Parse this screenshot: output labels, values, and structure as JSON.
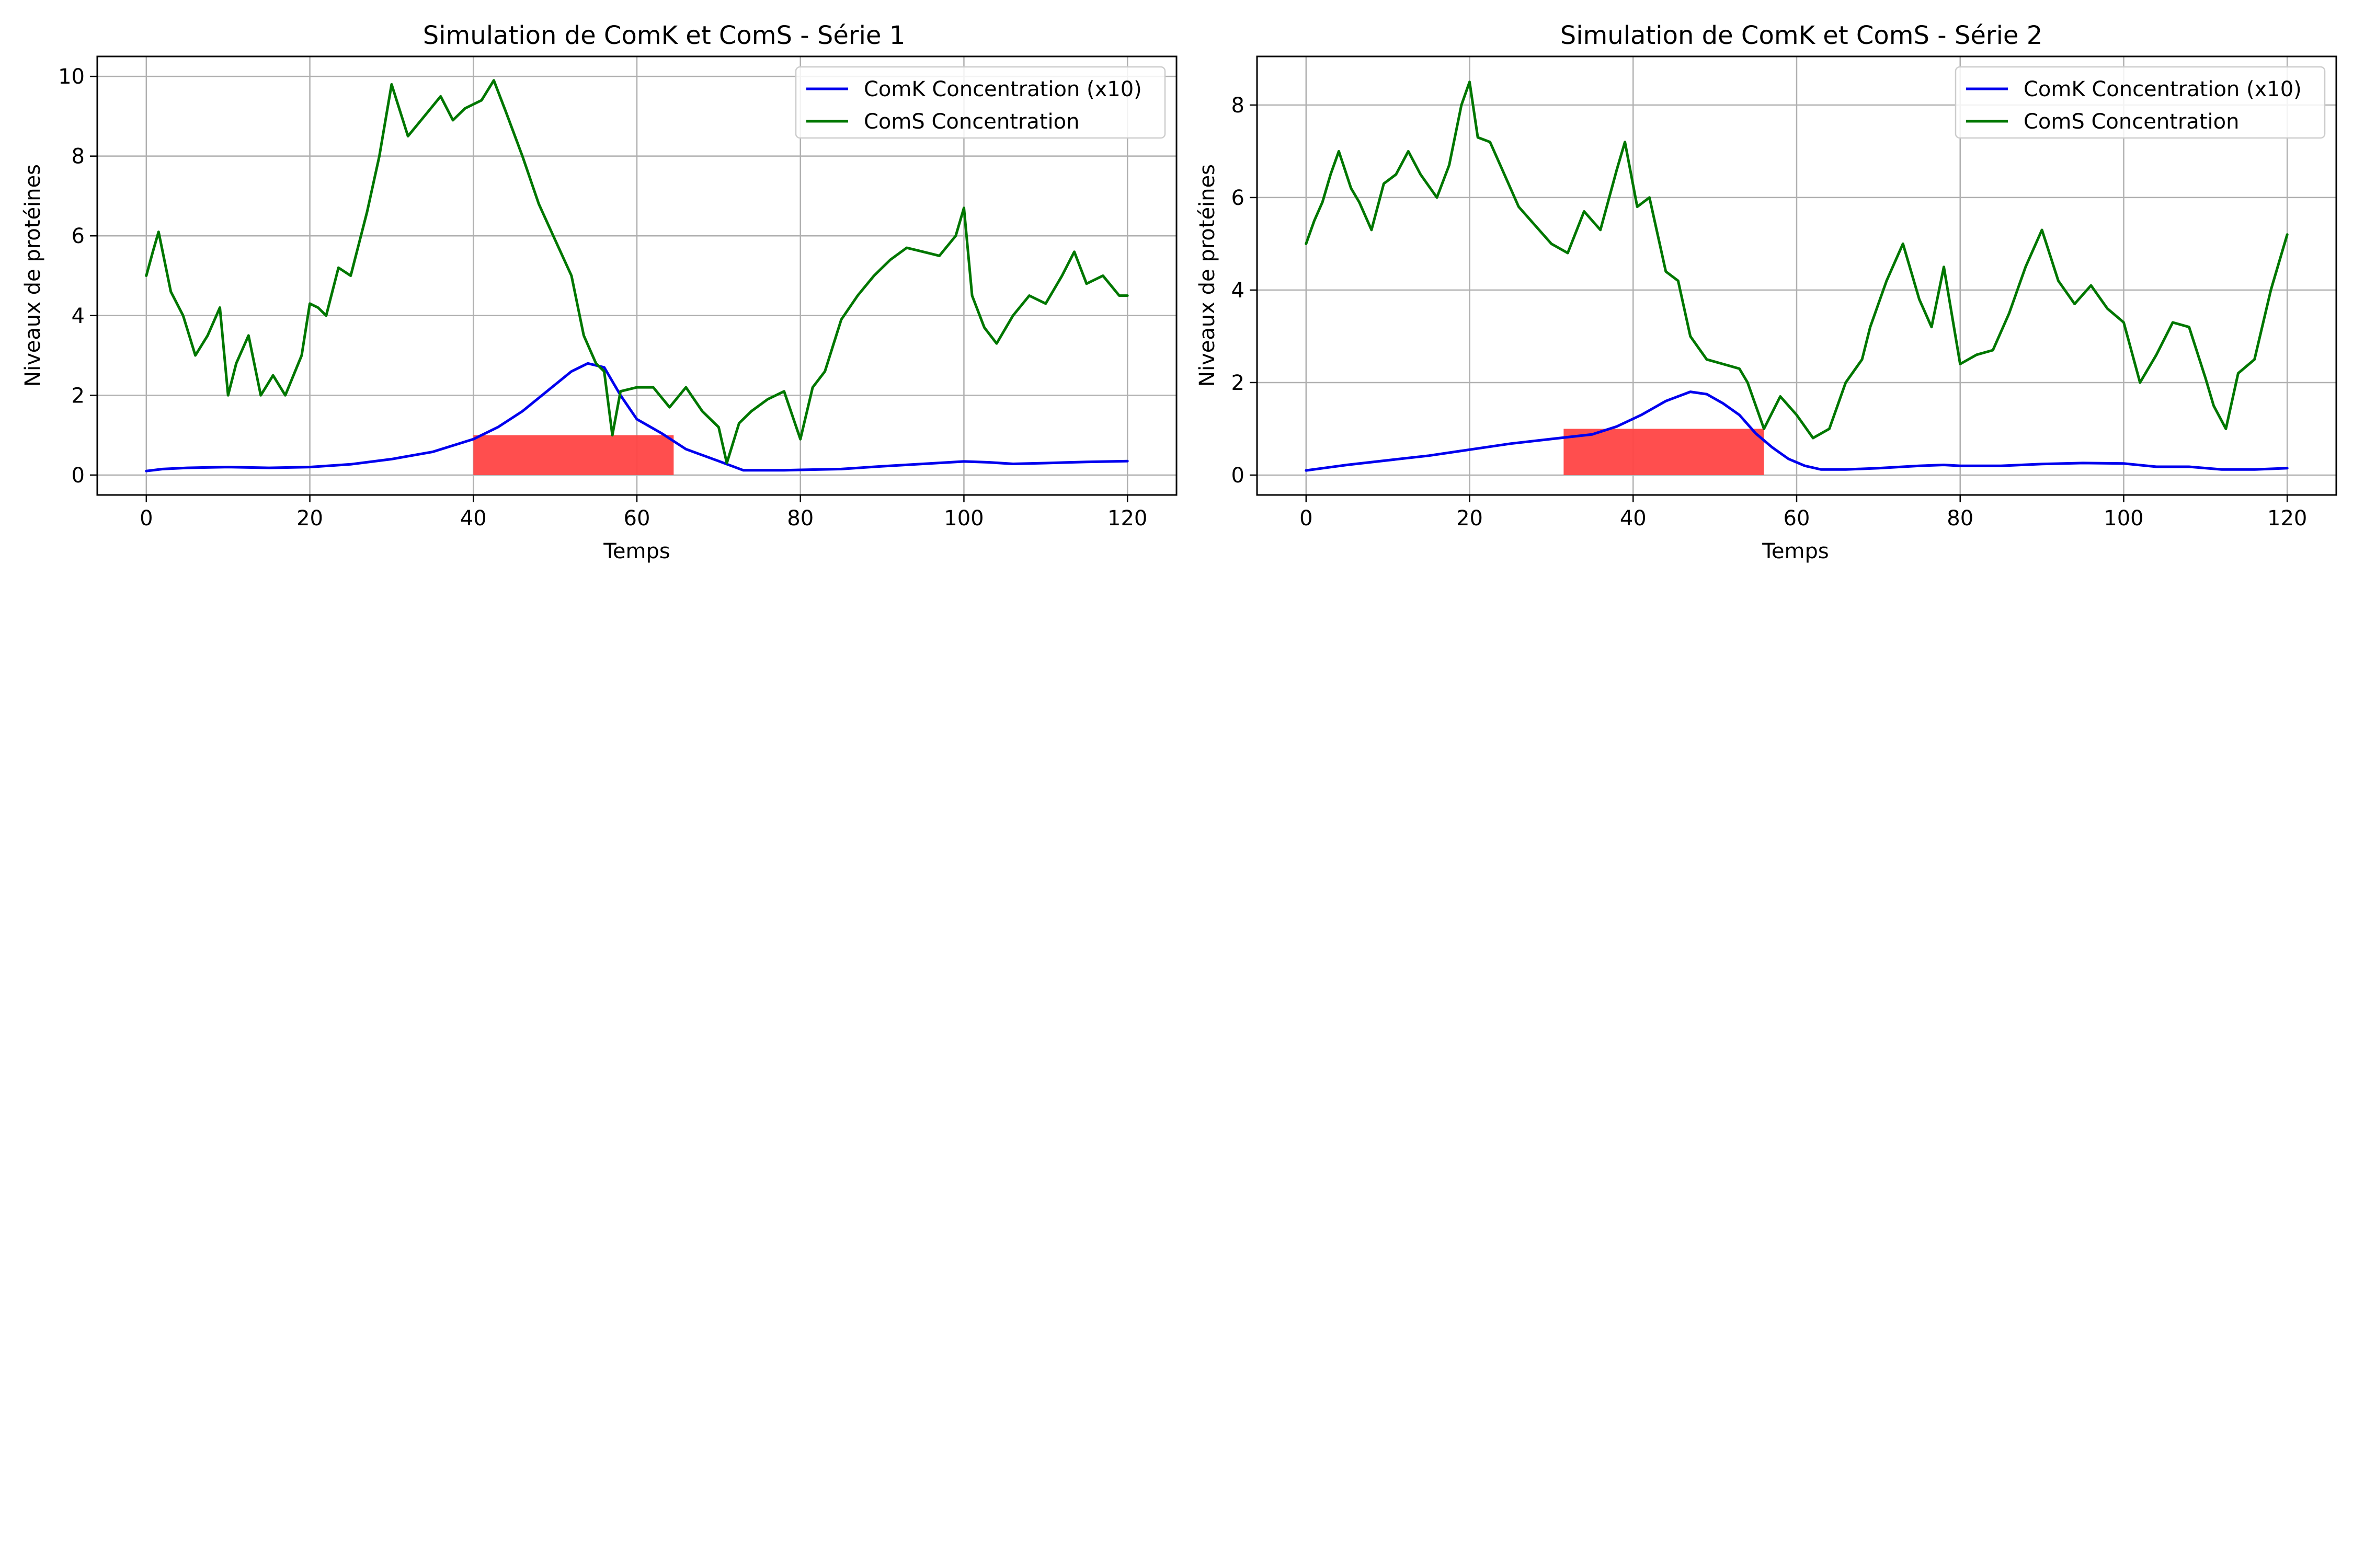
{
  "chart_data": [
    {
      "type": "line",
      "title": "Simulation de ComK et ComS - Série 1",
      "xlabel": "Temps",
      "ylabel": "Niveaux de protéines",
      "xlim": [
        -6,
        126
      ],
      "ylim": [
        -0.5,
        10.5
      ],
      "xticks": [
        0,
        20,
        40,
        60,
        80,
        100,
        120
      ],
      "yticks": [
        0,
        2,
        4,
        6,
        8,
        10
      ],
      "grid": true,
      "legend_position": "top-right",
      "highlight": {
        "x_start": 40,
        "x_end": 64.5,
        "y_start": 0,
        "y_end": 1.0,
        "color": "#ff4444"
      },
      "series": [
        {
          "name": "ComK Concentration (x10)",
          "color": "#0000ee",
          "x": [
            0,
            2,
            5,
            10,
            15,
            20,
            25,
            30,
            35,
            40,
            43,
            46,
            49,
            52,
            54,
            56,
            58,
            60,
            63,
            66,
            70,
            73,
            78,
            85,
            90,
            95,
            100,
            103,
            106,
            110,
            115,
            120
          ],
          "y": [
            0.1,
            0.15,
            0.18,
            0.2,
            0.18,
            0.2,
            0.27,
            0.4,
            0.58,
            0.9,
            1.2,
            1.6,
            2.1,
            2.6,
            2.8,
            2.7,
            2.0,
            1.4,
            1.05,
            0.65,
            0.35,
            0.12,
            0.12,
            0.15,
            0.22,
            0.28,
            0.34,
            0.32,
            0.28,
            0.3,
            0.33,
            0.35
          ]
        },
        {
          "name": "ComS Concentration",
          "color": "#007700",
          "x": [
            0,
            0.8,
            1.5,
            3,
            4.5,
            6,
            7.5,
            9,
            10,
            11,
            12.5,
            14,
            15.5,
            17,
            19,
            20,
            21,
            22,
            23.5,
            25,
            27,
            28.5,
            30,
            32,
            34,
            36,
            37.5,
            39,
            41,
            42.5,
            44,
            46,
            48,
            50,
            52,
            53.5,
            55,
            56,
            57,
            58,
            60,
            62,
            64,
            66,
            68,
            70,
            71,
            72.5,
            74,
            76,
            78,
            80,
            81.5,
            83,
            85,
            87,
            89,
            91,
            93,
            95,
            97,
            99,
            100,
            101,
            102.5,
            104,
            106,
            108,
            110,
            112,
            113.5,
            115,
            117,
            119,
            120
          ],
          "y": [
            5.0,
            5.6,
            6.1,
            4.6,
            4.0,
            3.0,
            3.5,
            4.2,
            2.0,
            2.8,
            3.5,
            2.0,
            2.5,
            2.0,
            3.0,
            4.3,
            4.2,
            4.0,
            5.2,
            5.0,
            6.6,
            8.0,
            9.8,
            8.5,
            9.0,
            9.5,
            8.9,
            9.2,
            9.4,
            9.9,
            9.1,
            8.0,
            6.8,
            5.9,
            5.0,
            3.5,
            2.8,
            2.6,
            1.0,
            2.1,
            2.2,
            2.2,
            1.7,
            2.2,
            1.6,
            1.2,
            0.3,
            1.3,
            1.6,
            1.9,
            2.1,
            0.9,
            2.2,
            2.6,
            3.9,
            4.5,
            5.0,
            5.4,
            5.7,
            5.6,
            5.5,
            6.0,
            6.7,
            4.5,
            3.7,
            3.3,
            4.0,
            4.5,
            4.3,
            5.0,
            5.6,
            4.8,
            5.0,
            4.5,
            4.5
          ]
        }
      ]
    },
    {
      "type": "line",
      "title": "Simulation de ComK et ComS - Série 2",
      "xlabel": "Temps",
      "ylabel": "Niveaux de protéines",
      "xlim": [
        -6,
        126
      ],
      "ylim": [
        -0.43,
        9.05
      ],
      "xticks": [
        0,
        20,
        40,
        60,
        80,
        100,
        120
      ],
      "yticks": [
        0,
        2,
        4,
        6,
        8
      ],
      "grid": true,
      "legend_position": "top-right",
      "highlight": {
        "x_start": 31.5,
        "x_end": 56,
        "y_start": 0,
        "y_end": 1.0,
        "color": "#ff4444"
      },
      "series": [
        {
          "name": "ComK Concentration (x10)",
          "color": "#0000ee",
          "x": [
            0,
            5,
            10,
            15,
            20,
            25,
            30,
            35,
            38,
            41,
            44,
            47,
            49,
            51,
            53,
            55,
            57,
            59,
            61,
            63,
            66,
            70,
            75,
            78,
            80,
            85,
            90,
            95,
            100,
            104,
            108,
            112,
            116,
            120
          ],
          "y": [
            0.1,
            0.22,
            0.32,
            0.42,
            0.55,
            0.68,
            0.78,
            0.88,
            1.05,
            1.3,
            1.6,
            1.8,
            1.75,
            1.55,
            1.3,
            0.9,
            0.6,
            0.35,
            0.2,
            0.12,
            0.12,
            0.15,
            0.2,
            0.22,
            0.2,
            0.2,
            0.24,
            0.26,
            0.25,
            0.18,
            0.18,
            0.12,
            0.12,
            0.15
          ]
        },
        {
          "name": "ComS Concentration",
          "color": "#007700",
          "x": [
            0,
            1,
            2,
            3,
            4,
            5.5,
            6.5,
            8,
            9.5,
            11,
            12.5,
            14,
            16,
            17.5,
            19,
            20,
            21,
            22.5,
            24,
            26,
            28,
            30,
            32,
            34,
            36,
            38,
            39,
            40.5,
            42,
            44,
            45.5,
            47,
            49,
            51,
            53,
            54,
            56,
            58,
            60,
            62,
            64,
            66,
            68,
            69,
            71,
            73,
            75,
            76.5,
            78,
            80,
            82,
            84,
            86,
            88,
            90,
            92,
            94,
            96,
            98,
            100,
            102,
            104,
            106,
            108,
            110,
            111,
            112.5,
            114,
            116,
            118,
            120
          ],
          "y": [
            5.0,
            5.5,
            5.9,
            6.5,
            7.0,
            6.2,
            5.9,
            5.3,
            6.3,
            6.5,
            7.0,
            6.5,
            6.0,
            6.7,
            8.0,
            8.5,
            7.3,
            7.2,
            6.6,
            5.8,
            5.4,
            5.0,
            4.8,
            5.7,
            5.3,
            6.6,
            7.2,
            5.8,
            6.0,
            4.4,
            4.2,
            3.0,
            2.5,
            2.4,
            2.3,
            2.0,
            1.0,
            1.7,
            1.3,
            0.8,
            1.0,
            2.0,
            2.5,
            3.2,
            4.2,
            5.0,
            3.8,
            3.2,
            4.5,
            2.4,
            2.6,
            2.7,
            3.5,
            4.5,
            5.3,
            4.2,
            3.7,
            4.1,
            3.6,
            3.3,
            2.0,
            2.6,
            3.3,
            3.2,
            2.1,
            1.5,
            1.0,
            2.2,
            2.5,
            4.0,
            5.2
          ]
        }
      ]
    }
  ]
}
